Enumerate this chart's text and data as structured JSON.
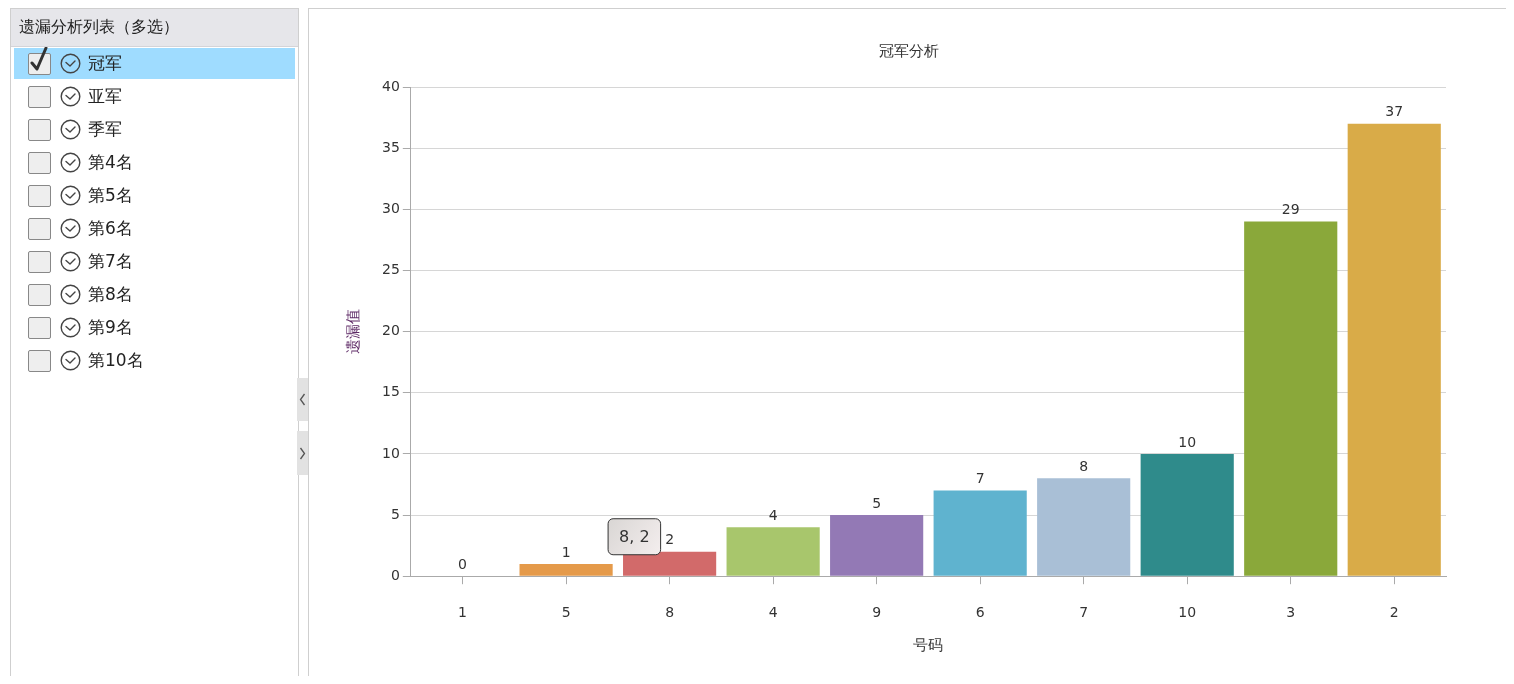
{
  "chart_data": [
    {
      "type": "other",
      "title": "遗漏分析列表（多选）",
      "annotations": [
        "冠军",
        "亚军",
        "季军",
        "第4名",
        "第5名",
        "第6名",
        "第7名",
        "第8名",
        "第9名",
        "第10名"
      ]
    },
    {
      "type": "bar",
      "title": "冠军分析",
      "xlabel": "号码",
      "ylabel": "遗漏值",
      "categories": [
        "1",
        "5",
        "8",
        "4",
        "9",
        "6",
        "7",
        "10",
        "3",
        "2"
      ],
      "values": [
        0,
        1,
        2,
        4,
        5,
        7,
        8,
        10,
        29,
        37
      ],
      "colors": [
        "#5b8fd6",
        "#e59a4a",
        "#d26a6a",
        "#a8c66c",
        "#9379b5",
        "#5fb3cf",
        "#a9bfd6",
        "#2f8b8b",
        "#8aa83a",
        "#d9ab48"
      ],
      "ylim": [
        0,
        40
      ],
      "yticks": [
        0,
        5,
        10,
        15,
        20,
        25,
        30,
        35,
        40
      ],
      "grid": "y",
      "data_labels": true,
      "annotations": [
        {
          "text": "8, 2",
          "x": "8",
          "y": 2
        }
      ]
    }
  ]
}
